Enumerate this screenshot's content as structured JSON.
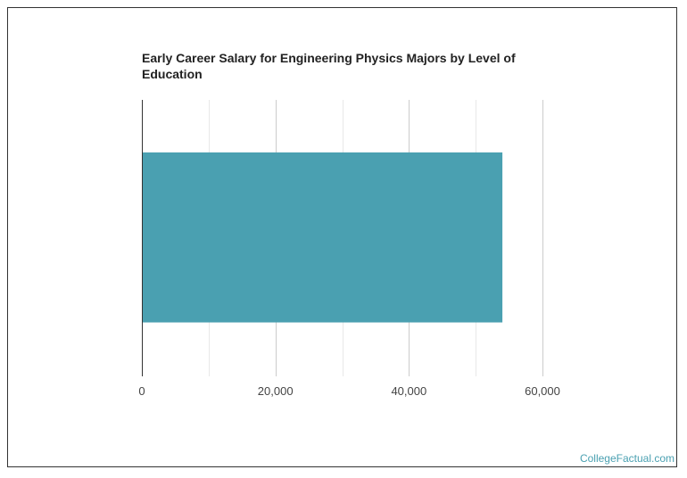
{
  "chart_data": {
    "type": "bar",
    "orientation": "horizontal",
    "title": "Early Career Salary for Engineering Physics Majors by Level of Education",
    "categories": [
      ""
    ],
    "values": [
      54000
    ],
    "xlim": [
      0,
      60000
    ],
    "x_ticks": [
      0,
      20000,
      40000,
      60000
    ],
    "x_tick_labels": [
      "0",
      "20,000",
      "40,000",
      "60,000"
    ],
    "grid": true,
    "bar_color": "#4aa0b1"
  },
  "footer": {
    "credit": "CollegeFactual.com"
  }
}
